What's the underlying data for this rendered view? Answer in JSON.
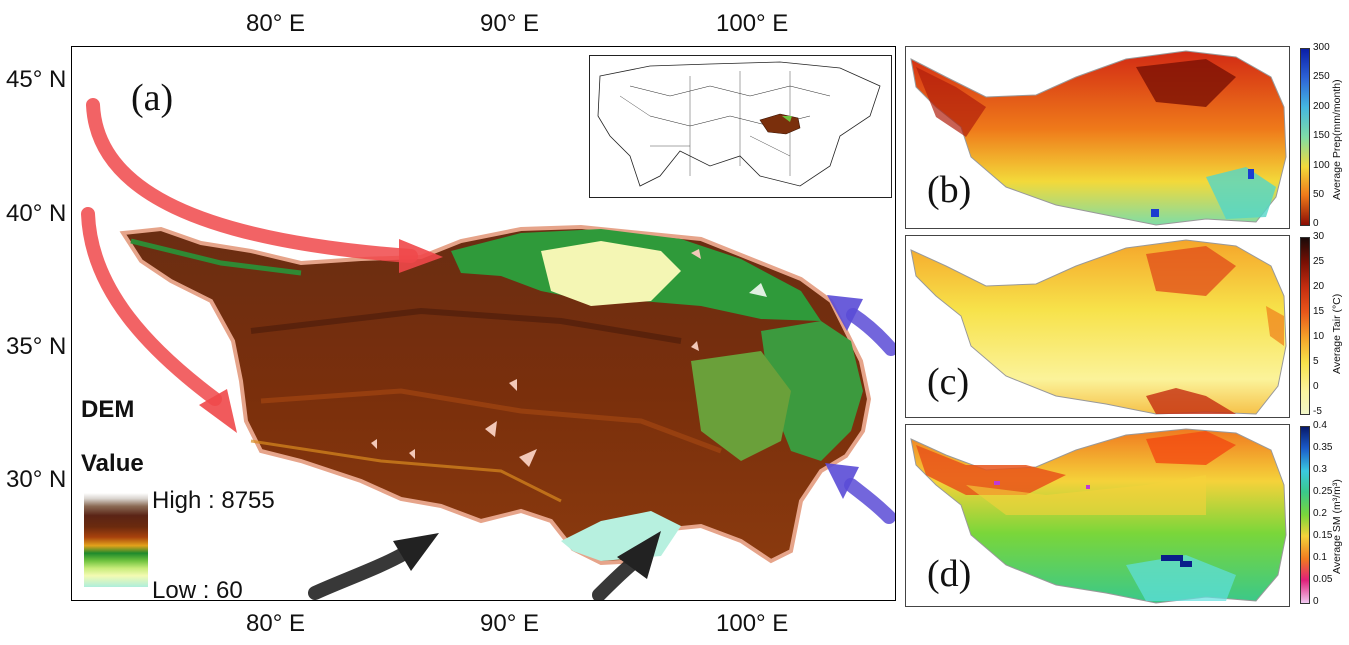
{
  "map": {
    "panel_label": "(a)",
    "lon_ticks": [
      "80° E",
      "90° E",
      "100° E"
    ],
    "lat_ticks": [
      "45° N",
      "40° N",
      "35° N",
      "30° N"
    ],
    "legend": {
      "title": "DEM",
      "subtitle": "Value",
      "high": "High : 8755",
      "low": "Low : 60"
    },
    "colors": {
      "westerly_arrows": "#f0484a",
      "monsoon_arrows": "#5a4bd6",
      "south_arrows": "#222222",
      "plateau_outline": "#e6a48a"
    }
  },
  "panels": [
    {
      "label": "(b)",
      "colorbar_title": "Average Prep(mm/month)",
      "ticks": [
        "300",
        "250",
        "200",
        "150",
        "100",
        "50",
        "0"
      ]
    },
    {
      "label": "(c)",
      "colorbar_title": "Average Tair (°C)",
      "ticks": [
        "30",
        "25",
        "20",
        "15",
        "10",
        "5",
        "0",
        "-5"
      ]
    },
    {
      "label": "(d)",
      "colorbar_title": "Average SM (m³/m³)",
      "ticks": [
        "0.4",
        "0.35",
        "0.3",
        "0.25",
        "0.2",
        "0.15",
        "0.1",
        "0.05",
        "0"
      ]
    }
  ]
}
